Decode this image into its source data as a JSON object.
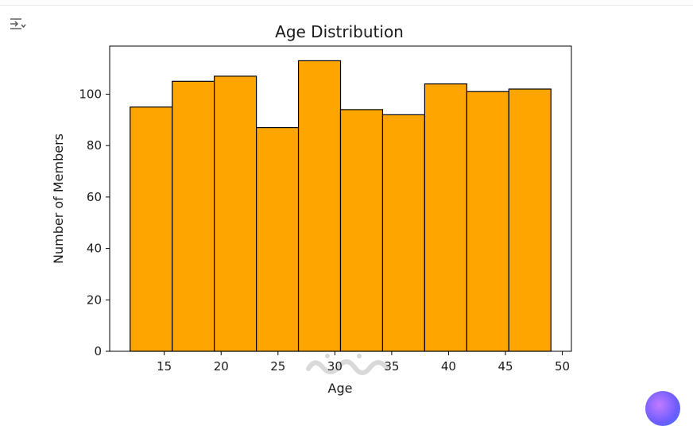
{
  "chart_data": {
    "type": "bar",
    "title": "Age Distribution",
    "xlabel": "Age",
    "ylabel": "Number of Members",
    "bin_edges": [
      12.0,
      15.7,
      19.4,
      23.1,
      26.8,
      30.5,
      34.2,
      37.9,
      41.6,
      45.3,
      49.0
    ],
    "values": [
      95,
      105,
      107,
      87,
      113,
      94,
      92,
      104,
      101,
      102
    ],
    "x_ticks": [
      15,
      20,
      25,
      30,
      35,
      40,
      45,
      50
    ],
    "y_ticks": [
      0,
      20,
      40,
      60,
      80,
      100
    ],
    "xlim": [
      10.2,
      50.8
    ],
    "ylim": [
      0,
      118.7
    ],
    "grid": false,
    "bar_color": "#ffa500",
    "edge_color": "#000000"
  },
  "icons": {
    "output_toggle": "output-toggle-icon",
    "assistant": "assistant-bubble-icon"
  },
  "watermark_logo": "mostaql.com"
}
